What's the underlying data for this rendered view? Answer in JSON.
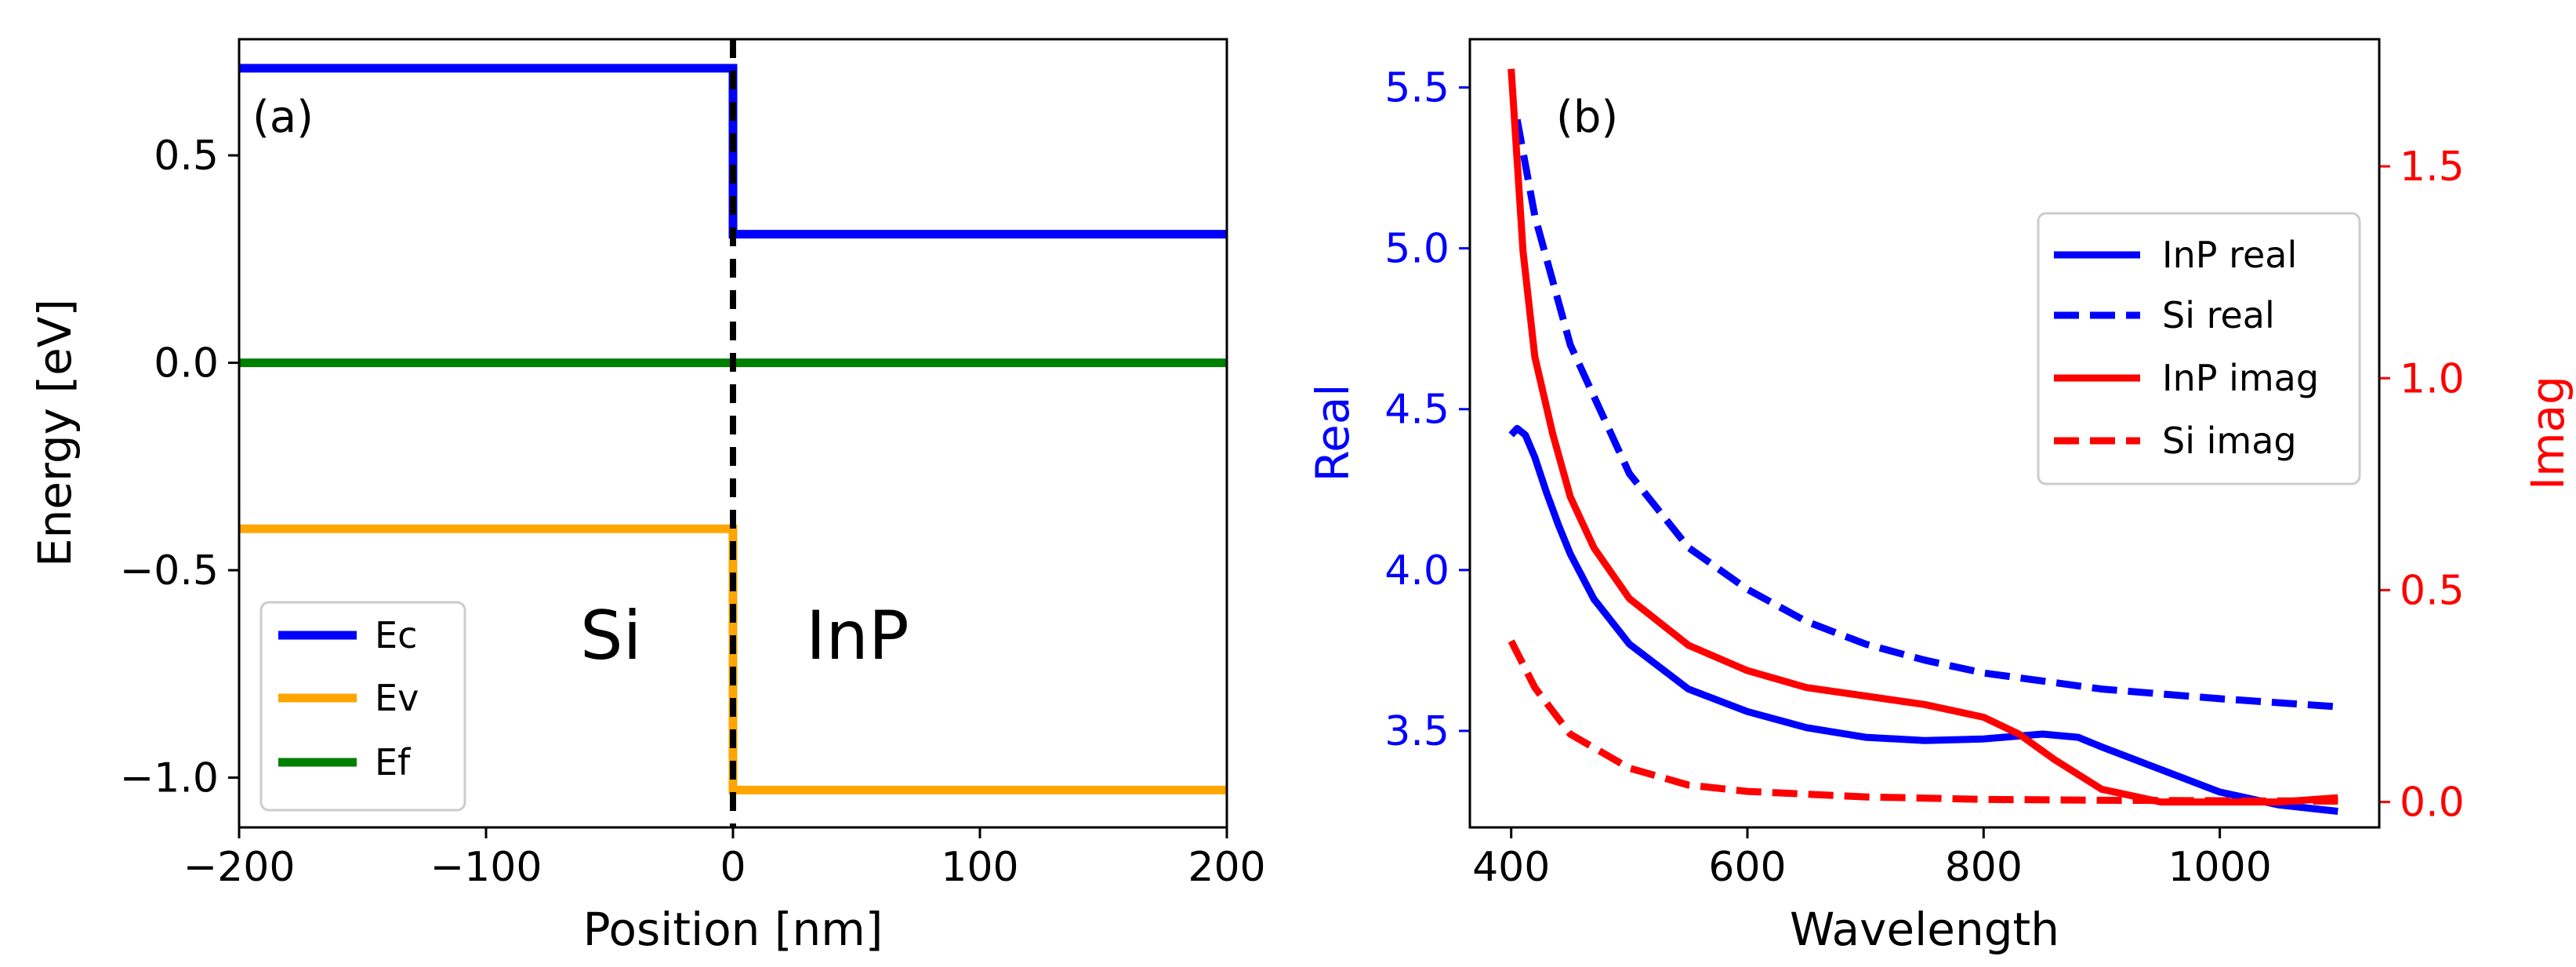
{
  "chart_data": [
    {
      "panel": "(a)",
      "type": "line",
      "title": "",
      "xlabel": "Position [nm]",
      "ylabel": "Energy [eV]",
      "xlim": [
        -200,
        200
      ],
      "ylim": [
        -1.12,
        0.78
      ],
      "xticks": [
        -200,
        -100,
        0,
        100,
        200
      ],
      "xtick_labels": [
        "−200",
        "−100",
        "0",
        "100",
        "200"
      ],
      "yticks": [
        0.5,
        0.0,
        -0.5,
        -1.0
      ],
      "ytick_labels": [
        "0.5",
        "0.0",
        "−0.5",
        "−1.0"
      ],
      "region_labels": [
        "Si",
        "InP"
      ],
      "interface_x": 0,
      "legend_position": "lower-left",
      "series": [
        {
          "name": "Ec",
          "color": "#0000ff",
          "x": [
            -200,
            0,
            0,
            200
          ],
          "y": [
            0.71,
            0.71,
            0.31,
            0.31
          ]
        },
        {
          "name": "Ev",
          "color": "#ffa500",
          "x": [
            -200,
            0,
            0,
            200
          ],
          "y": [
            -0.4,
            -0.4,
            -1.03,
            -1.03
          ]
        },
        {
          "name": "Ef",
          "color": "#008000",
          "x": [
            -200,
            200
          ],
          "y": [
            0.0,
            0.0
          ]
        }
      ]
    },
    {
      "panel": "(b)",
      "type": "line",
      "title": "",
      "xlabel": "Wavelength",
      "ylabel": "Real",
      "ylabel_right": "Imag",
      "xlim": [
        365,
        1135
      ],
      "ylim": [
        3.2,
        5.65
      ],
      "ylim_right": [
        -0.06,
        1.8
      ],
      "xticks": [
        400,
        600,
        800,
        1000
      ],
      "xtick_labels": [
        "400",
        "600",
        "800",
        "1000"
      ],
      "yticks": [
        3.5,
        4.0,
        4.5,
        5.0,
        5.5
      ],
      "ytick_labels": [
        "3.5",
        "4.0",
        "4.5",
        "5.0",
        "5.5"
      ],
      "yticks_right": [
        0.0,
        0.5,
        1.0,
        1.5
      ],
      "ytick_labels_right": [
        "0.0",
        "0.5",
        "1.0",
        "1.5"
      ],
      "left_axis_color": "#0000ff",
      "right_axis_color": "#ff0000",
      "legend_position": "center-right",
      "series": [
        {
          "name": "InP real",
          "color": "#0000ff",
          "dash": "solid",
          "axis": "left",
          "x": [
            400,
            405,
            412,
            420,
            430,
            440,
            450,
            470,
            500,
            550,
            600,
            650,
            700,
            750,
            800,
            850,
            880,
            900,
            950,
            1000,
            1050,
            1100
          ],
          "y": [
            4.42,
            4.44,
            4.42,
            4.35,
            4.24,
            4.14,
            4.05,
            3.91,
            3.77,
            3.63,
            3.56,
            3.51,
            3.48,
            3.47,
            3.475,
            3.49,
            3.48,
            3.45,
            3.38,
            3.31,
            3.27,
            3.25
          ]
        },
        {
          "name": "Si real",
          "color": "#0000ff",
          "dash": "dashed",
          "axis": "left",
          "x": [
            405,
            420,
            450,
            500,
            550,
            600,
            650,
            700,
            750,
            800,
            900,
            1000,
            1100
          ],
          "y": [
            5.4,
            5.1,
            4.7,
            4.3,
            4.07,
            3.94,
            3.84,
            3.77,
            3.72,
            3.68,
            3.63,
            3.6,
            3.575
          ]
        },
        {
          "name": "InP imag",
          "color": "#ff0000",
          "dash": "solid",
          "axis": "right",
          "x": [
            400,
            410,
            420,
            435,
            450,
            470,
            500,
            550,
            600,
            650,
            700,
            750,
            800,
            830,
            860,
            900,
            950,
            1000,
            1050,
            1100
          ],
          "y": [
            1.73,
            1.3,
            1.05,
            0.87,
            0.72,
            0.6,
            0.48,
            0.37,
            0.31,
            0.27,
            0.25,
            0.23,
            0.2,
            0.16,
            0.1,
            0.03,
            0.0,
            0.0,
            0.0,
            0.01
          ]
        },
        {
          "name": "Si imag",
          "color": "#ff0000",
          "dash": "dashed",
          "axis": "right",
          "x": [
            400,
            420,
            450,
            500,
            550,
            600,
            700,
            800,
            900,
            1000,
            1100
          ],
          "y": [
            0.38,
            0.27,
            0.16,
            0.08,
            0.04,
            0.025,
            0.012,
            0.006,
            0.004,
            0.003,
            0.002
          ]
        }
      ]
    }
  ]
}
